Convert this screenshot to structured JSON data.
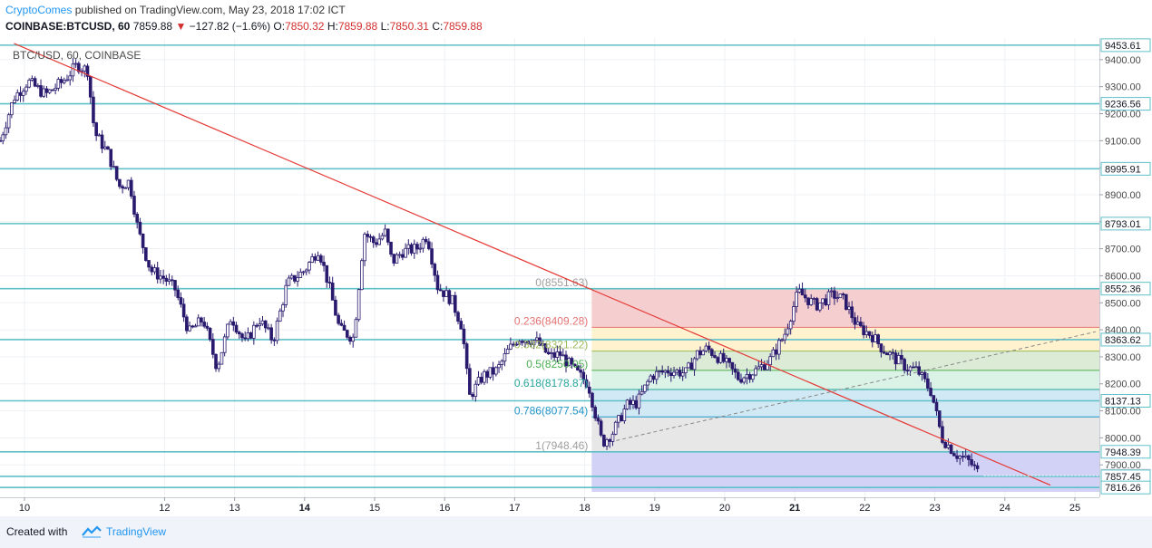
{
  "header": {
    "author": "CryptoComes",
    "published_text": "published on TradingView.com, May 23, 2018 17:02 ICT",
    "symbol": "COINBASE:BTCUSD, 60",
    "last": "7859.88",
    "change": "−127.82 (−1.6%)",
    "o_label": "O:",
    "o_value": "7850.32",
    "h_label": "H:",
    "h_value": "7859.88",
    "l_label": "L:",
    "l_value": "7850.31",
    "c_label": "C:",
    "c_value": "7859.88"
  },
  "footer": {
    "created_with": "Created with",
    "brand": "TradingView"
  },
  "colors": {
    "candle": "#2a1a6e",
    "trend": "#e53935",
    "hline": "#5fc0c8",
    "grid": "#eef1f5"
  },
  "chart_data": {
    "type": "candlestick",
    "title": "BTC/USD, 60, COINBASE",
    "x_ticks": [
      {
        "label": "10",
        "day": 10,
        "bold": false
      },
      {
        "label": "12",
        "day": 12,
        "bold": false
      },
      {
        "label": "13",
        "day": 13,
        "bold": false
      },
      {
        "label": "14",
        "day": 14,
        "bold": true
      },
      {
        "label": "15",
        "day": 15,
        "bold": false
      },
      {
        "label": "16",
        "day": 16,
        "bold": false
      },
      {
        "label": "17",
        "day": 17,
        "bold": false
      },
      {
        "label": "18",
        "day": 18,
        "bold": false
      },
      {
        "label": "19",
        "day": 19,
        "bold": false
      },
      {
        "label": "20",
        "day": 20,
        "bold": false
      },
      {
        "label": "21",
        "day": 21,
        "bold": true
      },
      {
        "label": "22",
        "day": 22,
        "bold": false
      },
      {
        "label": "23",
        "day": 23,
        "bold": false
      },
      {
        "label": "24",
        "day": 24,
        "bold": false
      },
      {
        "label": "25",
        "day": 25,
        "bold": false
      }
    ],
    "y_ticks": [
      "9400.00",
      "9300.00",
      "9200.00",
      "9100.00",
      "9000.00",
      "8900.00",
      "8800.00",
      "8700.00",
      "8600.00",
      "8500.00",
      "8400.00",
      "8300.00",
      "8200.00",
      "8100.00",
      "8000.00",
      "7900.00"
    ],
    "y_range": [
      7780,
      9480
    ],
    "x_range": [
      9.65,
      25.35
    ],
    "price_badges": [
      {
        "price": 9453.61,
        "label": "9453.61"
      },
      {
        "price": 9236.56,
        "label": "9236.56"
      },
      {
        "price": 8995.91,
        "label": "8995.91"
      },
      {
        "price": 8793.01,
        "label": "8793.01"
      },
      {
        "price": 8552.36,
        "label": "8552.36"
      },
      {
        "price": 8363.62,
        "label": "8363.62"
      },
      {
        "price": 8137.13,
        "label": "8137.13"
      },
      {
        "price": 7948.39,
        "label": "7948.39"
      },
      {
        "price": 7859.88,
        "label": "7859.88"
      },
      {
        "price": 7857.45,
        "label": "7857.45"
      },
      {
        "price": 7816.26,
        "label": "7816.26"
      }
    ],
    "horizontal_lines": [
      9453.61,
      9236.56,
      8995.91,
      8793.01,
      8552.36,
      8363.62,
      8137.13,
      7948.39,
      7857.45,
      7816.26
    ],
    "fibonacci": {
      "x_start": 18.1,
      "levels": [
        {
          "ratio": 0,
          "label": "0(8551.63)",
          "price": 8551.63,
          "color": "#9e9e9e",
          "fill": "#f4cccc"
        },
        {
          "ratio": 0.236,
          "label": "0.236(8409.28)",
          "price": 8409.28,
          "color": "#e57373",
          "fill": "#fff2cc"
        },
        {
          "ratio": 0.382,
          "label": "0.382(8321.22)",
          "price": 8321.22,
          "color": "#9bbb59",
          "fill": "#d9ead3"
        },
        {
          "ratio": 0.5,
          "label": "0.5(8250.05)",
          "price": 8250.05,
          "color": "#4caf50",
          "fill": "#d9f2e6"
        },
        {
          "ratio": 0.618,
          "label": "0.618(8178.87)",
          "price": 8178.87,
          "color": "#26a69a",
          "fill": "#cfe8f3"
        },
        {
          "ratio": 0.786,
          "label": "0.786(8077.54)",
          "price": 8077.54,
          "color": "#2196c8",
          "fill": "#e6e6e6"
        },
        {
          "ratio": 1,
          "label": "1(7948.46)",
          "price": 7948.46,
          "color": "#9e9e9e",
          "fill": "#d0d0f5"
        }
      ],
      "extension_bottom": 7800
    },
    "trendline": {
      "x1": 9.85,
      "y1": 9460,
      "x2": 24.65,
      "y2": 7825
    },
    "dashed_line": {
      "x1": 18.45,
      "y1": 7990,
      "x2": 25.3,
      "y2": 8393
    },
    "series": [
      {
        "name": "BTCUSD",
        "points": [
          [
            9.65,
            9100
          ],
          [
            9.85,
            9260
          ],
          [
            10.05,
            9320
          ],
          [
            10.3,
            9270
          ],
          [
            10.55,
            9320
          ],
          [
            10.75,
            9380
          ],
          [
            10.9,
            9360
          ],
          [
            11.0,
            9130
          ],
          [
            11.2,
            9050
          ],
          [
            11.35,
            8930
          ],
          [
            11.5,
            8950
          ],
          [
            11.62,
            8770
          ],
          [
            11.8,
            8620
          ],
          [
            12.0,
            8590
          ],
          [
            12.15,
            8550
          ],
          [
            12.35,
            8390
          ],
          [
            12.55,
            8440
          ],
          [
            12.75,
            8260
          ],
          [
            12.95,
            8450
          ],
          [
            13.15,
            8350
          ],
          [
            13.35,
            8440
          ],
          [
            13.55,
            8360
          ],
          [
            13.75,
            8570
          ],
          [
            14.0,
            8620
          ],
          [
            14.2,
            8700
          ],
          [
            14.35,
            8560
          ],
          [
            14.5,
            8400
          ],
          [
            14.7,
            8370
          ],
          [
            14.85,
            8760
          ],
          [
            15.0,
            8720
          ],
          [
            15.15,
            8760
          ],
          [
            15.25,
            8650
          ],
          [
            15.4,
            8690
          ],
          [
            15.6,
            8700
          ],
          [
            15.75,
            8750
          ],
          [
            15.9,
            8560
          ],
          [
            16.1,
            8510
          ],
          [
            16.25,
            8410
          ],
          [
            16.35,
            8150
          ],
          [
            16.55,
            8230
          ],
          [
            16.75,
            8250
          ],
          [
            16.9,
            8320
          ],
          [
            17.05,
            8370
          ],
          [
            17.3,
            8360
          ],
          [
            17.5,
            8300
          ],
          [
            17.65,
            8310
          ],
          [
            17.85,
            8250
          ],
          [
            18.05,
            8200
          ],
          [
            18.25,
            7980
          ],
          [
            18.4,
            8020
          ],
          [
            18.6,
            8120
          ],
          [
            18.75,
            8130
          ],
          [
            18.95,
            8230
          ],
          [
            19.2,
            8250
          ],
          [
            19.45,
            8240
          ],
          [
            19.6,
            8310
          ],
          [
            19.75,
            8330
          ],
          [
            20.0,
            8280
          ],
          [
            20.2,
            8220
          ],
          [
            20.45,
            8250
          ],
          [
            20.65,
            8290
          ],
          [
            20.85,
            8380
          ],
          [
            21.05,
            8540
          ],
          [
            21.3,
            8490
          ],
          [
            21.55,
            8530
          ],
          [
            21.7,
            8510
          ],
          [
            21.9,
            8410
          ],
          [
            22.1,
            8380
          ],
          [
            22.25,
            8330
          ],
          [
            22.45,
            8290
          ],
          [
            22.6,
            8260
          ],
          [
            22.75,
            8250
          ],
          [
            22.95,
            8170
          ],
          [
            23.1,
            8000
          ],
          [
            23.3,
            7940
          ],
          [
            23.5,
            7910
          ],
          [
            23.65,
            7860
          ]
        ]
      }
    ]
  }
}
